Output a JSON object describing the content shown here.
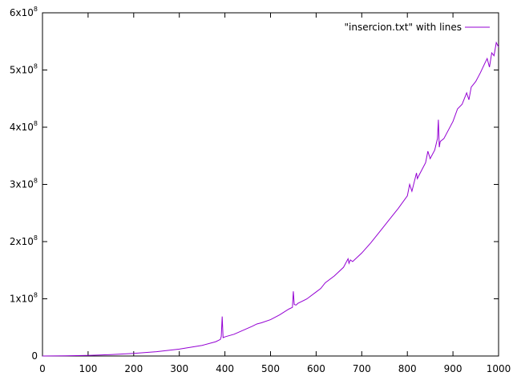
{
  "chart_data": {
    "type": "line",
    "legend": {
      "label": "\"insercion.txt\" with lines",
      "position": "top-right"
    },
    "xlim": [
      0,
      1000
    ],
    "ylim": [
      0,
      600000000
    ],
    "x_ticks": [
      "0",
      "100",
      "200",
      "300",
      "400",
      "500",
      "600",
      "700",
      "800",
      "900",
      "1000"
    ],
    "y_ticks": [
      {
        "value": 0,
        "mantissa": "0",
        "exp": ""
      },
      {
        "value": 100000000,
        "mantissa": "1x10",
        "exp": "8"
      },
      {
        "value": 200000000,
        "mantissa": "2x10",
        "exp": "8"
      },
      {
        "value": 300000000,
        "mantissa": "3x10",
        "exp": "8"
      },
      {
        "value": 400000000,
        "mantissa": "4x10",
        "exp": "8"
      },
      {
        "value": 500000000,
        "mantissa": "5x10",
        "exp": "8"
      },
      {
        "value": 600000000,
        "mantissa": "6x10",
        "exp": "8"
      }
    ],
    "grid": false,
    "series": [
      {
        "name": "\"insercion.txt\" with lines",
        "color": "#9400d3",
        "x": [
          0,
          50,
          100,
          150,
          200,
          250,
          300,
          350,
          380,
          390,
          392,
          394,
          396,
          400,
          420,
          440,
          460,
          470,
          480,
          500,
          520,
          540,
          548,
          550,
          552,
          556,
          560,
          580,
          600,
          610,
          620,
          640,
          660,
          670,
          672,
          675,
          680,
          700,
          720,
          740,
          760,
          780,
          800,
          805,
          810,
          820,
          822,
          825,
          840,
          845,
          850,
          860,
          866,
          868,
          870,
          872,
          880,
          900,
          910,
          920,
          930,
          935,
          940,
          950,
          960,
          970,
          975,
          980,
          985,
          990,
          995,
          1000
        ],
        "y": [
          0,
          400000,
          1100000,
          2500000,
          4500000,
          7500000,
          12000000,
          18500000,
          25000000,
          29000000,
          34000000,
          69000000,
          32000000,
          33500000,
          38000000,
          45000000,
          52000000,
          56000000,
          58000000,
          63500000,
          72000000,
          82000000,
          85000000,
          113000000,
          90000000,
          89000000,
          92000000,
          100000000,
          112000000,
          118000000,
          128000000,
          140000000,
          155000000,
          170000000,
          162000000,
          168000000,
          165000000,
          180000000,
          198000000,
          218000000,
          238000000,
          258000000,
          280000000,
          300000000,
          288000000,
          320000000,
          310000000,
          315000000,
          338000000,
          358000000,
          345000000,
          360000000,
          380000000,
          413000000,
          365000000,
          375000000,
          380000000,
          410000000,
          432000000,
          440000000,
          460000000,
          448000000,
          470000000,
          480000000,
          495000000,
          512000000,
          520000000,
          505000000,
          530000000,
          525000000,
          548000000,
          540000000
        ]
      }
    ]
  }
}
